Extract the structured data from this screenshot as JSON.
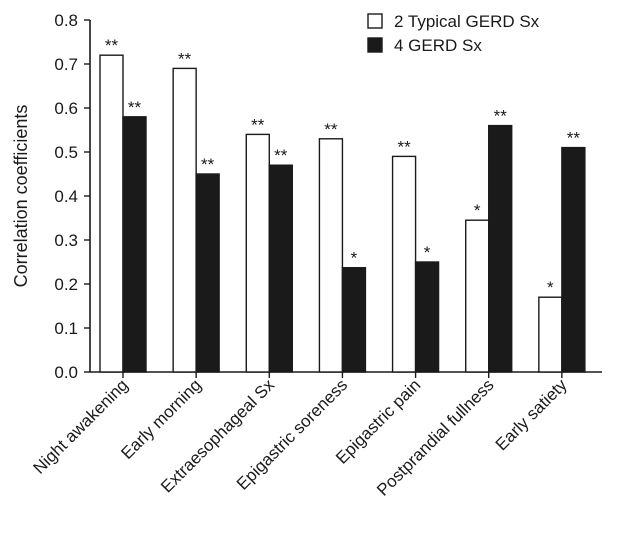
{
  "chart_data": {
    "type": "bar",
    "ylabel": "Correlation coefficients",
    "xlabel": "",
    "ylim": [
      0,
      0.8
    ],
    "yticks": [
      "0.0",
      "0.1",
      "0.2",
      "0.3",
      "0.4",
      "0.5",
      "0.6",
      "0.7",
      "0.8"
    ],
    "categories": [
      "Night awakening",
      "Early morning",
      "Extraesophageal Sx",
      "Epigastric soreness",
      "Epigastric pain",
      "Postprandial fullness",
      "Early satiety"
    ],
    "series": [
      {
        "name": "2 Typical GERD Sx",
        "color": "#ffffff",
        "values": [
          0.72,
          0.69,
          0.54,
          0.53,
          0.49,
          0.345,
          0.17
        ],
        "labels": [
          "**",
          "**",
          "**",
          "**",
          "**",
          "*",
          "*"
        ]
      },
      {
        "name": "4 GERD Sx",
        "color": "#1a1a1a",
        "values": [
          0.58,
          0.45,
          0.47,
          0.237,
          0.25,
          0.56,
          0.51
        ],
        "labels": [
          "**",
          "**",
          "**",
          "*",
          "*",
          "**",
          "**"
        ]
      }
    ],
    "legend_position": "top-right",
    "grid": false
  }
}
